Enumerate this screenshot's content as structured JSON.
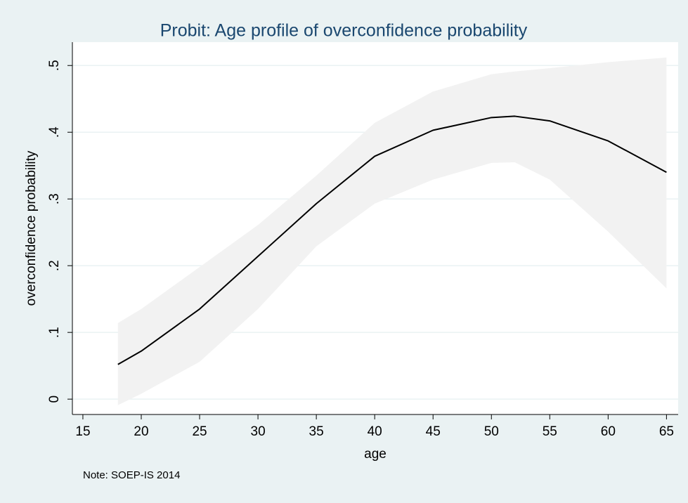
{
  "chart_data": {
    "type": "line",
    "title": "Probit: Age profile of overconfidence probability",
    "xlabel": "age",
    "ylabel": "overconfidence probability",
    "note": "Note: SOEP-IS 2014",
    "x": [
      18,
      20,
      25,
      30,
      35,
      40,
      45,
      50,
      52,
      55,
      60,
      65
    ],
    "series": [
      {
        "color": "#000000",
        "values": [
          0.052,
          0.072,
          0.135,
          0.214,
          0.293,
          0.364,
          0.403,
          0.422,
          0.424,
          0.417,
          0.387,
          0.34
        ]
      }
    ],
    "band": {
      "color": "#f2f2f2",
      "upper": [
        0.114,
        0.135,
        0.198,
        0.261,
        0.335,
        0.414,
        0.461,
        0.487,
        0.491,
        0.496,
        0.505,
        0.512
      ],
      "lower": [
        -0.009,
        0.008,
        0.056,
        0.135,
        0.229,
        0.293,
        0.329,
        0.354,
        0.355,
        0.329,
        0.251,
        0.166
      ]
    },
    "xlim": [
      14.1,
      66.0
    ],
    "ylim": [
      -0.023,
      0.535
    ],
    "xticks": [
      15,
      20,
      25,
      30,
      35,
      40,
      45,
      50,
      55,
      60,
      65
    ],
    "yticks": [
      0,
      {
        "value": 0.1,
        "label": ".1"
      },
      {
        "value": 0.2,
        "label": ".2"
      },
      {
        "value": 0.3,
        "label": ".3"
      },
      {
        "value": 0.4,
        "label": ".4"
      },
      {
        "value": 0.5,
        "label": ".5"
      }
    ],
    "grid": true
  }
}
